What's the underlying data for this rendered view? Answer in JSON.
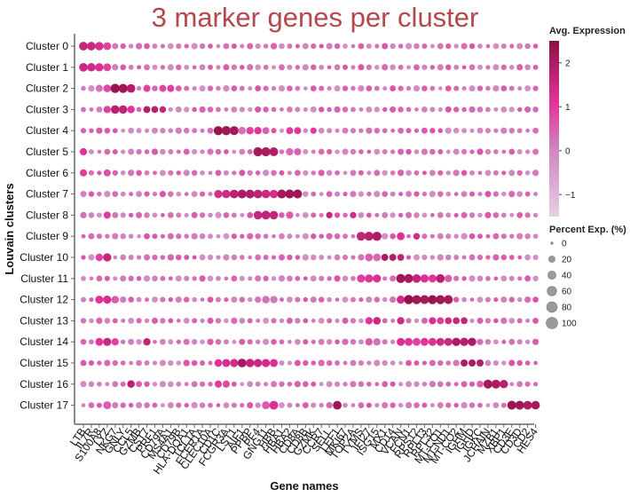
{
  "chart_data": {
    "type": "dotplot",
    "title": "3 marker genes per cluster",
    "xlabel": "Gene names",
    "ylabel": "Louvain clusters",
    "clusters": [
      "Cluster 0",
      "Cluster 1",
      "Cluster 2",
      "Cluster 3",
      "Cluster 4",
      "Cluster 5",
      "Cluster 6",
      "Cluster 7",
      "Cluster 8",
      "Cluster 9",
      "Cluster 10",
      "Cluster 11",
      "Cluster 12",
      "Cluster 13",
      "Cluster 14",
      "Cluster 15",
      "Cluster 16",
      "Cluster 17"
    ],
    "genes": [
      "LTB",
      "IL7R",
      "S100A8",
      "LYZ",
      "NKG7",
      "GNLY",
      "CCL5",
      "GZMB",
      "CST7",
      "PRF1",
      "CD79A",
      "MS4A1",
      "CD79B",
      "HLA-DQA1",
      "TCL1A",
      "FCER1A",
      "CLEC10A",
      "CD1C",
      "FCGR3A",
      "LST1",
      "AIF1",
      "PPBP",
      "PF4",
      "GNG11",
      "HBB",
      "HBA1",
      "HBA2",
      "CD8A",
      "CD8B",
      "GZMK",
      "CCR7",
      "SELL",
      "LEF1",
      "MKI67",
      "TOP2A",
      "TYMS",
      "IFI27",
      "ISG15",
      "MX1",
      "CD14",
      "VCAN",
      "FCN1",
      "RPS12",
      "RPL13",
      "RPL32",
      "MT-CO1",
      "MT-ND1",
      "MT-CO2",
      "IGHM",
      "IGHD",
      "IGKC",
      "JCHAIN",
      "MZB1",
      "XBP1",
      "CD3E",
      "CD3D",
      "CD2",
      "HES4"
    ],
    "expression_legend": {
      "title": "Avg. Expression",
      "min": -1.5,
      "max": 2.5,
      "ticks": [
        -1,
        0,
        1,
        2
      ]
    },
    "size_legend": {
      "title": "Percent Exp. (%)",
      "ticks": [
        0,
        20,
        40,
        60,
        80,
        100
      ]
    },
    "highlights": [
      [
        [
          0,
          1.6,
          48
        ],
        [
          1,
          1.5,
          46
        ],
        [
          2,
          1.3,
          44
        ],
        [
          3,
          0.9,
          36
        ]
      ],
      [
        [
          0,
          1.5,
          46
        ],
        [
          1,
          1.4,
          44
        ],
        [
          2,
          1.2,
          42
        ],
        [
          3,
          0.9,
          36
        ]
      ],
      [
        [
          2,
          0.3,
          28
        ],
        [
          3,
          0.8,
          34
        ],
        [
          4,
          2.3,
          56
        ],
        [
          5,
          2.2,
          54
        ],
        [
          6,
          1.9,
          48
        ],
        [
          8,
          0.9,
          28
        ],
        [
          10,
          0.9,
          26
        ],
        [
          11,
          1.0,
          28
        ]
      ],
      [
        [
          3,
          0.9,
          30
        ],
        [
          4,
          1.8,
          46
        ],
        [
          5,
          1.7,
          44
        ],
        [
          6,
          1.1,
          32
        ],
        [
          8,
          1.9,
          26
        ],
        [
          9,
          1.8,
          24
        ],
        [
          10,
          1.6,
          22
        ]
      ],
      [
        [
          17,
          2.3,
          54
        ],
        [
          18,
          2.2,
          56
        ],
        [
          19,
          2.1,
          52
        ],
        [
          20,
          0.3,
          32
        ],
        [
          21,
          0.9,
          32
        ],
        [
          22,
          1.1,
          30
        ],
        [
          23,
          0.5,
          26
        ],
        [
          26,
          1.0,
          26
        ],
        [
          27,
          1.1,
          26
        ],
        [
          29,
          1.0,
          20
        ]
      ],
      [
        [
          0,
          1.1,
          30
        ],
        [
          9,
          0.6,
          20
        ],
        [
          22,
          2.1,
          54
        ],
        [
          23,
          2.0,
          54
        ],
        [
          24,
          1.9,
          50
        ],
        [
          26,
          0.4,
          30
        ],
        [
          27,
          0.5,
          28
        ]
      ],
      [
        [
          0,
          1.0,
          28
        ],
        [
          3,
          0.8,
          26
        ]
      ],
      [
        [
          17,
          1.3,
          40
        ],
        [
          18,
          1.4,
          44
        ],
        [
          19,
          1.8,
          48
        ],
        [
          20,
          2.0,
          50
        ],
        [
          21,
          1.9,
          50
        ],
        [
          22,
          1.7,
          48
        ],
        [
          23,
          1.5,
          46
        ],
        [
          24,
          1.3,
          44
        ],
        [
          25,
          2.1,
          52
        ],
        [
          26,
          2.2,
          52
        ],
        [
          27,
          2.2,
          52
        ]
      ],
      [
        [
          3,
          1.0,
          28
        ],
        [
          22,
          1.6,
          46
        ],
        [
          23,
          1.7,
          50
        ],
        [
          24,
          1.6,
          46
        ],
        [
          26,
          0.6,
          30
        ],
        [
          31,
          1.6,
          20
        ],
        [
          34,
          1.4,
          20
        ]
      ],
      [
        [
          35,
          1.7,
          50
        ],
        [
          36,
          1.8,
          52
        ],
        [
          37,
          2.0,
          54
        ],
        [
          40,
          1.2,
          36
        ],
        [
          42,
          1.4,
          22
        ]
      ],
      [
        [
          2,
          0.9,
          32
        ],
        [
          3,
          1.6,
          42
        ],
        [
          36,
          0.5,
          36
        ],
        [
          37,
          0.4,
          34
        ],
        [
          38,
          2.0,
          26
        ],
        [
          39,
          1.9,
          26
        ],
        [
          40,
          1.7,
          24
        ]
      ],
      [
        [
          35,
          1.0,
          40
        ],
        [
          36,
          1.1,
          42
        ],
        [
          37,
          1.2,
          40
        ],
        [
          40,
          2.2,
          54
        ],
        [
          41,
          2.1,
          52
        ],
        [
          42,
          1.6,
          46
        ],
        [
          43,
          1.2,
          42
        ],
        [
          44,
          1.1,
          38
        ],
        [
          45,
          1.8,
          48
        ],
        [
          46,
          0.6,
          30
        ]
      ],
      [
        [
          2,
          1.1,
          38
        ],
        [
          3,
          1.3,
          40
        ],
        [
          4,
          0.6,
          32
        ],
        [
          23,
          0.3,
          32
        ],
        [
          24,
          0.2,
          30
        ],
        [
          40,
          1.4,
          40
        ],
        [
          41,
          2.4,
          56
        ],
        [
          42,
          2.2,
          54
        ],
        [
          43,
          2.1,
          52
        ],
        [
          44,
          2.3,
          54
        ],
        [
          45,
          2.2,
          54
        ],
        [
          46,
          2.1,
          52
        ]
      ],
      [
        [
          36,
          1.1,
          30
        ],
        [
          37,
          1.5,
          34
        ],
        [
          40,
          1.4,
          30
        ],
        [
          44,
          1.2,
          28
        ],
        [
          45,
          1.0,
          26
        ],
        [
          46,
          1.4,
          24
        ],
        [
          47,
          1.6,
          24
        ],
        [
          48,
          1.6,
          24
        ]
      ],
      [
        [
          2,
          1.1,
          36
        ],
        [
          3,
          1.5,
          40
        ],
        [
          4,
          0.9,
          30
        ],
        [
          8,
          1.7,
          30
        ],
        [
          36,
          0.6,
          30
        ],
        [
          37,
          0.3,
          30
        ],
        [
          40,
          1.2,
          38
        ],
        [
          41,
          1.1,
          38
        ],
        [
          42,
          0.9,
          36
        ],
        [
          43,
          1.1,
          36
        ],
        [
          44,
          1.2,
          38
        ],
        [
          45,
          1.4,
          38
        ],
        [
          46,
          1.5,
          38
        ],
        [
          47,
          2.0,
          44
        ],
        [
          48,
          1.9,
          42
        ],
        [
          49,
          2.0,
          42
        ]
      ],
      [
        [
          17,
          1.1,
          34
        ],
        [
          18,
          1.3,
          38
        ],
        [
          19,
          1.4,
          40
        ],
        [
          20,
          2.1,
          48
        ],
        [
          21,
          1.6,
          44
        ],
        [
          22,
          1.5,
          42
        ],
        [
          23,
          1.4,
          40
        ],
        [
          24,
          1.2,
          38
        ],
        [
          48,
          2.0,
          28
        ],
        [
          49,
          2.0,
          28
        ],
        [
          50,
          1.9,
          28
        ]
      ],
      [
        [
          6,
          1.8,
          32
        ],
        [
          17,
          1.0,
          28
        ],
        [
          18,
          0.8,
          28
        ],
        [
          50,
          0.5,
          24
        ],
        [
          51,
          2.1,
          52
        ],
        [
          52,
          2.0,
          50
        ],
        [
          53,
          1.8,
          44
        ]
      ],
      [
        [
          3,
          0.5,
          38
        ],
        [
          23,
          0.6,
          36
        ],
        [
          24,
          1.2,
          50
        ],
        [
          32,
          2.2,
          48
        ],
        [
          54,
          2.3,
          52
        ],
        [
          55,
          2.2,
          50
        ],
        [
          56,
          2.0,
          48
        ],
        [
          57,
          2.1,
          46
        ]
      ]
    ]
  }
}
